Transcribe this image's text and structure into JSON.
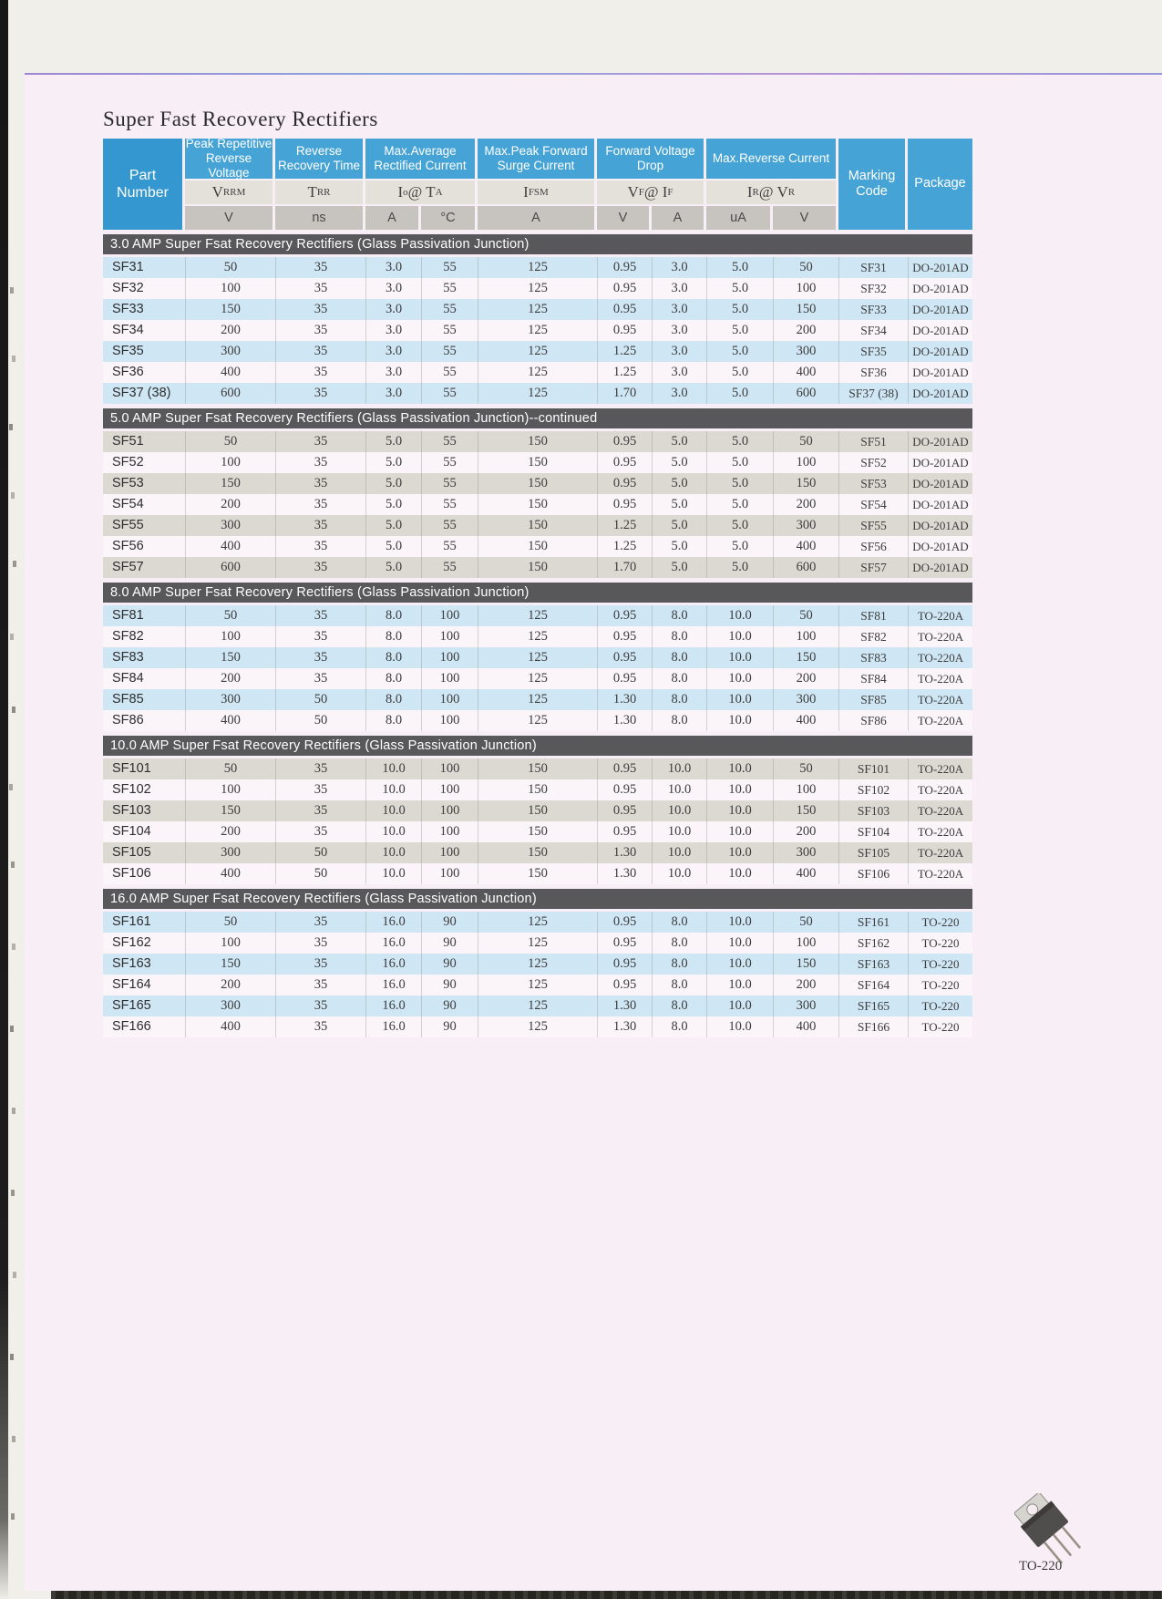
{
  "page": {
    "title": "Super Fast Recovery Rectifiers"
  },
  "table": {
    "header": {
      "part_number": "Part\nNumber",
      "marking_code": "Marking\nCode",
      "package": "Package",
      "groups": [
        {
          "label": "Peak Repetitive\nReverse Voltage",
          "symbol": [
            {
              "t": "V"
            },
            {
              "t": "RRM",
              "sub": true
            }
          ],
          "units": [
            "V"
          ]
        },
        {
          "label": "Reverse\nRecovery Time",
          "symbol": [
            {
              "t": "T"
            },
            {
              "t": "RR",
              "sub": true
            }
          ],
          "units": [
            "ns"
          ]
        },
        {
          "label": "Max.Average\nRectified Current",
          "symbol": [
            {
              "t": "I"
            },
            {
              "t": "o",
              "sub": true
            },
            {
              "t": " @ "
            },
            {
              "t": "T"
            },
            {
              "t": "A",
              "sub": true
            }
          ],
          "units": [
            "A",
            "°C"
          ]
        },
        {
          "label": "Max.Peak Forward\nSurge Current",
          "symbol": [
            {
              "t": "I"
            },
            {
              "t": "FSM",
              "sub": true
            }
          ],
          "units": [
            "A"
          ]
        },
        {
          "label": "Forward Voltage\nDrop",
          "symbol": [
            {
              "t": "V"
            },
            {
              "t": "F",
              "sub": true
            },
            {
              "t": " @ "
            },
            {
              "t": "I"
            },
            {
              "t": "F",
              "sub": true
            }
          ],
          "units": [
            "V",
            "A"
          ]
        },
        {
          "label": "Max.Reverse\nCurrent",
          "symbol": [
            {
              "t": "I"
            },
            {
              "t": "R",
              "sub": true
            },
            {
              "t": " @ "
            },
            {
              "t": "V"
            },
            {
              "t": "R",
              "sub": true
            }
          ],
          "units": [
            "uA",
            "V"
          ]
        }
      ]
    },
    "sections": [
      {
        "title": "3.0 AMP Super Fsat Recovery Rectifiers (Glass Passivation Junction)",
        "stripe": "blue",
        "rows": [
          [
            "SF31",
            "50",
            "35",
            "3.0",
            "55",
            "125",
            "0.95",
            "3.0",
            "5.0",
            "50",
            "SF31",
            "DO-201AD"
          ],
          [
            "SF32",
            "100",
            "35",
            "3.0",
            "55",
            "125",
            "0.95",
            "3.0",
            "5.0",
            "100",
            "SF32",
            "DO-201AD"
          ],
          [
            "SF33",
            "150",
            "35",
            "3.0",
            "55",
            "125",
            "0.95",
            "3.0",
            "5.0",
            "150",
            "SF33",
            "DO-201AD"
          ],
          [
            "SF34",
            "200",
            "35",
            "3.0",
            "55",
            "125",
            "0.95",
            "3.0",
            "5.0",
            "200",
            "SF34",
            "DO-201AD"
          ],
          [
            "SF35",
            "300",
            "35",
            "3.0",
            "55",
            "125",
            "1.25",
            "3.0",
            "5.0",
            "300",
            "SF35",
            "DO-201AD"
          ],
          [
            "SF36",
            "400",
            "35",
            "3.0",
            "55",
            "125",
            "1.25",
            "3.0",
            "5.0",
            "400",
            "SF36",
            "DO-201AD"
          ],
          [
            "SF37 (38)",
            "600",
            "35",
            "3.0",
            "55",
            "125",
            "1.70",
            "3.0",
            "5.0",
            "600",
            "SF37 (38)",
            "DO-201AD"
          ]
        ]
      },
      {
        "title": "5.0 AMP Super Fsat Recovery Rectifiers (Glass Passivation Junction)--continued",
        "stripe": "gray",
        "rows": [
          [
            "SF51",
            "50",
            "35",
            "5.0",
            "55",
            "150",
            "0.95",
            "5.0",
            "5.0",
            "50",
            "SF51",
            "DO-201AD"
          ],
          [
            "SF52",
            "100",
            "35",
            "5.0",
            "55",
            "150",
            "0.95",
            "5.0",
            "5.0",
            "100",
            "SF52",
            "DO-201AD"
          ],
          [
            "SF53",
            "150",
            "35",
            "5.0",
            "55",
            "150",
            "0.95",
            "5.0",
            "5.0",
            "150",
            "SF53",
            "DO-201AD"
          ],
          [
            "SF54",
            "200",
            "35",
            "5.0",
            "55",
            "150",
            "0.95",
            "5.0",
            "5.0",
            "200",
            "SF54",
            "DO-201AD"
          ],
          [
            "SF55",
            "300",
            "35",
            "5.0",
            "55",
            "150",
            "1.25",
            "5.0",
            "5.0",
            "300",
            "SF55",
            "DO-201AD"
          ],
          [
            "SF56",
            "400",
            "35",
            "5.0",
            "55",
            "150",
            "1.25",
            "5.0",
            "5.0",
            "400",
            "SF56",
            "DO-201AD"
          ],
          [
            "SF57",
            "600",
            "35",
            "5.0",
            "55",
            "150",
            "1.70",
            "5.0",
            "5.0",
            "600",
            "SF57",
            "DO-201AD"
          ]
        ]
      },
      {
        "title": "8.0 AMP Super Fsat Recovery Rectifiers (Glass Passivation Junction)",
        "stripe": "blue",
        "rows": [
          [
            "SF81",
            "50",
            "35",
            "8.0",
            "100",
            "125",
            "0.95",
            "8.0",
            "10.0",
            "50",
            "SF81",
            "TO-220A"
          ],
          [
            "SF82",
            "100",
            "35",
            "8.0",
            "100",
            "125",
            "0.95",
            "8.0",
            "10.0",
            "100",
            "SF82",
            "TO-220A"
          ],
          [
            "SF83",
            "150",
            "35",
            "8.0",
            "100",
            "125",
            "0.95",
            "8.0",
            "10.0",
            "150",
            "SF83",
            "TO-220A"
          ],
          [
            "SF84",
            "200",
            "35",
            "8.0",
            "100",
            "125",
            "0.95",
            "8.0",
            "10.0",
            "200",
            "SF84",
            "TO-220A"
          ],
          [
            "SF85",
            "300",
            "50",
            "8.0",
            "100",
            "125",
            "1.30",
            "8.0",
            "10.0",
            "300",
            "SF85",
            "TO-220A"
          ],
          [
            "SF86",
            "400",
            "50",
            "8.0",
            "100",
            "125",
            "1.30",
            "8.0",
            "10.0",
            "400",
            "SF86",
            "TO-220A"
          ]
        ]
      },
      {
        "title": "10.0 AMP Super Fsat Recovery Rectifiers (Glass Passivation Junction)",
        "stripe": "gray",
        "rows": [
          [
            "SF101",
            "50",
            "35",
            "10.0",
            "100",
            "150",
            "0.95",
            "10.0",
            "10.0",
            "50",
            "SF101",
            "TO-220A"
          ],
          [
            "SF102",
            "100",
            "35",
            "10.0",
            "100",
            "150",
            "0.95",
            "10.0",
            "10.0",
            "100",
            "SF102",
            "TO-220A"
          ],
          [
            "SF103",
            "150",
            "35",
            "10.0",
            "100",
            "150",
            "0.95",
            "10.0",
            "10.0",
            "150",
            "SF103",
            "TO-220A"
          ],
          [
            "SF104",
            "200",
            "35",
            "10.0",
            "100",
            "150",
            "0.95",
            "10.0",
            "10.0",
            "200",
            "SF104",
            "TO-220A"
          ],
          [
            "SF105",
            "300",
            "50",
            "10.0",
            "100",
            "150",
            "1.30",
            "10.0",
            "10.0",
            "300",
            "SF105",
            "TO-220A"
          ],
          [
            "SF106",
            "400",
            "50",
            "10.0",
            "100",
            "150",
            "1.30",
            "10.0",
            "10.0",
            "400",
            "SF106",
            "TO-220A"
          ]
        ]
      },
      {
        "title": "16.0 AMP Super Fsat Recovery Rectifiers (Glass Passivation Junction)",
        "stripe": "blue",
        "rows": [
          [
            "SF161",
            "50",
            "35",
            "16.0",
            "90",
            "125",
            "0.95",
            "8.0",
            "10.0",
            "50",
            "SF161",
            "TO-220"
          ],
          [
            "SF162",
            "100",
            "35",
            "16.0",
            "90",
            "125",
            "0.95",
            "8.0",
            "10.0",
            "100",
            "SF162",
            "TO-220"
          ],
          [
            "SF163",
            "150",
            "35",
            "16.0",
            "90",
            "125",
            "0.95",
            "8.0",
            "10.0",
            "150",
            "SF163",
            "TO-220"
          ],
          [
            "SF164",
            "200",
            "35",
            "16.0",
            "90",
            "125",
            "0.95",
            "8.0",
            "10.0",
            "200",
            "SF164",
            "TO-220"
          ],
          [
            "SF165",
            "300",
            "35",
            "16.0",
            "90",
            "125",
            "1.30",
            "8.0",
            "10.0",
            "300",
            "SF165",
            "TO-220"
          ],
          [
            "SF166",
            "400",
            "35",
            "16.0",
            "90",
            "125",
            "1.30",
            "8.0",
            "10.0",
            "400",
            "SF166",
            "TO-220"
          ]
        ]
      }
    ]
  },
  "footer": {
    "package_label": "TO-220"
  },
  "colors": {
    "header_blue": "#46a3d5",
    "part_header_blue": "#3497cf",
    "section_bar_gray": "#58585a",
    "stripe_blue": "#cfe7f5",
    "stripe_gray": "#dcd9d3",
    "stripe_light": "#fbf4f8",
    "page_pink": "#f8eef5"
  }
}
